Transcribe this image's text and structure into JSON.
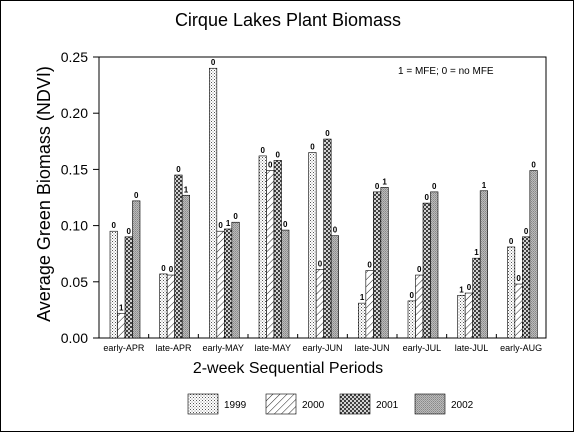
{
  "chart_data": {
    "type": "bar",
    "title": "Cirque Lakes Plant Biomass",
    "xlabel": "2-week Sequential Periods",
    "ylabel": "Average Green Biomass (NDVI)",
    "ylim": [
      0,
      0.25
    ],
    "yticks": [
      "0.00",
      "0.05",
      "0.10",
      "0.15",
      "0.20",
      "0.25"
    ],
    "annotation": "1 = MFE; 0 = no MFE",
    "legend_position": "bottom",
    "grid": false,
    "categories": [
      "early-APR",
      "late-APR",
      "early-MAY",
      "late-MAY",
      "early-JUN",
      "late-JUN",
      "early-JUL",
      "late-JUL",
      "early-AUG"
    ],
    "series": [
      {
        "name": "1999",
        "pattern": "dots",
        "values": [
          0.095,
          0.057,
          0.24,
          0.162,
          0.165,
          0.031,
          0.033,
          0.038,
          0.081
        ],
        "mfe": [
          "0",
          "0",
          "0",
          "0",
          "0",
          "1",
          "0",
          "1",
          "0"
        ]
      },
      {
        "name": "2000",
        "pattern": "diagonal",
        "values": [
          0.022,
          0.056,
          0.095,
          0.149,
          0.061,
          0.06,
          0.056,
          0.04,
          0.048
        ],
        "mfe": [
          "1",
          "0",
          "0",
          "0",
          "0",
          "0",
          "0",
          "0",
          "0"
        ]
      },
      {
        "name": "2001",
        "pattern": "crosshatch",
        "values": [
          0.09,
          0.145,
          0.097,
          0.158,
          0.177,
          0.13,
          0.12,
          0.071,
          0.09
        ],
        "mfe": [
          "0",
          "0",
          "1",
          "0",
          "0",
          "0",
          "0",
          "1",
          "0"
        ]
      },
      {
        "name": "2002",
        "pattern": "fine",
        "values": [
          0.122,
          0.127,
          0.103,
          0.096,
          0.091,
          0.134,
          0.13,
          0.131,
          0.149
        ],
        "mfe": [
          "0",
          "1",
          "0",
          "0",
          "0",
          "1",
          "0",
          "1",
          "0"
        ]
      }
    ]
  }
}
